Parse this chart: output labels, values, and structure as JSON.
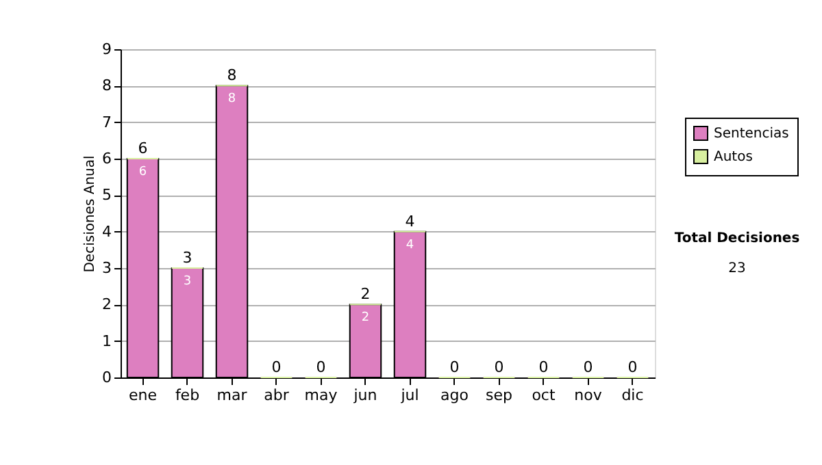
{
  "chart_data": {
    "type": "bar",
    "stacked": true,
    "ylabel": "Decisiones Anual",
    "categories": [
      "ene",
      "feb",
      "mar",
      "abr",
      "may",
      "jun",
      "jul",
      "ago",
      "sep",
      "oct",
      "nov",
      "dic"
    ],
    "series": [
      {
        "name": "Sentencias",
        "color": "#dd7fc0",
        "values": [
          6,
          3,
          8,
          0,
          0,
          2,
          4,
          0,
          0,
          0,
          0,
          0
        ],
        "value_labels": [
          "6",
          "3",
          "8",
          null,
          null,
          "2",
          "4",
          null,
          null,
          null,
          null,
          null
        ]
      },
      {
        "name": "Autos",
        "color": "#d8f0a0",
        "values": [
          0,
          0,
          0,
          0,
          0,
          0,
          0,
          0,
          0,
          0,
          0,
          0
        ]
      }
    ],
    "totals": [
      "6",
      "3",
      "8",
      "0",
      "0",
      "2",
      "4",
      "0",
      "0",
      "0",
      "0",
      "0"
    ],
    "ylim": [
      0,
      9
    ],
    "yticks": [
      0,
      1,
      2,
      3,
      4,
      5,
      6,
      7,
      8,
      9
    ],
    "grid": "y",
    "legend": "right",
    "annotations": [
      "Total Decisiones",
      "23"
    ]
  }
}
